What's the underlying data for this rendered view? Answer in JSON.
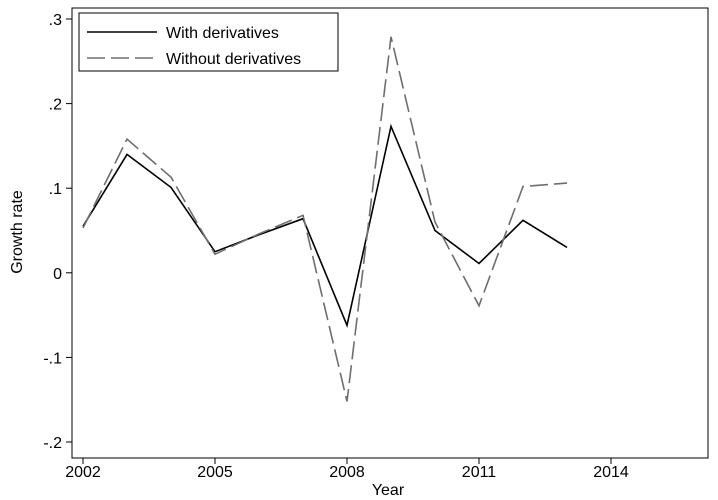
{
  "chart_data": {
    "type": "line",
    "title": "",
    "xlabel": "Year",
    "ylabel": "Growth rate",
    "xlim": [
      2002,
      2014
    ],
    "ylim": [
      -0.2,
      0.3
    ],
    "grid": false,
    "legend_position": "top-left",
    "x_ticks": [
      {
        "value": 2002,
        "label": "2002"
      },
      {
        "value": 2005,
        "label": "2005"
      },
      {
        "value": 2008,
        "label": "2008"
      },
      {
        "value": 2011,
        "label": "2011"
      },
      {
        "value": 2014,
        "label": "2014"
      }
    ],
    "y_ticks": [
      {
        "value": -0.2,
        "label": "-.2"
      },
      {
        "value": -0.1,
        "label": "-.1"
      },
      {
        "value": 0,
        "label": "0"
      },
      {
        "value": 0.1,
        "label": ".1"
      },
      {
        "value": 0.2,
        "label": ".2"
      },
      {
        "value": 0.3,
        "label": ".3"
      }
    ],
    "x": [
      2002,
      2003,
      2004,
      2005,
      2006,
      2007,
      2008,
      2009,
      2010,
      2011,
      2012,
      2013
    ],
    "series": [
      {
        "name": "With derivatives",
        "color": "#000000",
        "style": "solid",
        "values": [
          0.055,
          0.14,
          0.101,
          0.025,
          0.045,
          0.064,
          -0.062,
          0.173,
          0.05,
          0.011,
          0.062,
          0.03
        ]
      },
      {
        "name": "Without derivatives",
        "color": "#6e6e6e",
        "style": "dashed",
        "values": [
          0.053,
          0.158,
          0.113,
          0.022,
          0.046,
          0.068,
          -0.152,
          0.279,
          0.06,
          -0.039,
          0.102,
          0.106
        ]
      }
    ]
  }
}
